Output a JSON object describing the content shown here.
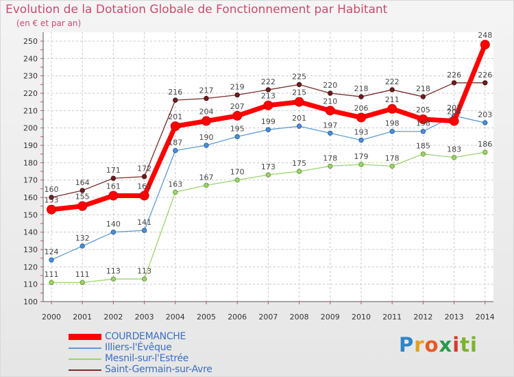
{
  "header": {
    "title": "Evolution de la Dotation Globale de Fonctionnement par Habitant",
    "subtitle": "(en € et par an)"
  },
  "logo": {
    "text": "Proxiti",
    "letters": [
      "P",
      "r",
      "o",
      "x",
      "i",
      "ti"
    ]
  },
  "chart_data": {
    "type": "line",
    "title": "Evolution de la Dotation Globale de Fonctionnement par Habitant",
    "subtitle": "(en € et par an)",
    "xlabel": "",
    "ylabel": "",
    "x": [
      "2000",
      "2001",
      "2002",
      "2003",
      "2004",
      "2005",
      "2006",
      "2007",
      "2008",
      "2009",
      "2010",
      "2011",
      "2012",
      "2013",
      "2014"
    ],
    "ylim": [
      100,
      250
    ],
    "yticks": [
      100,
      110,
      120,
      130,
      140,
      150,
      160,
      170,
      180,
      190,
      200,
      210,
      220,
      230,
      240,
      250
    ],
    "grid": true,
    "legend_position": "bottom-left",
    "series": [
      {
        "name": "COURDEMANCHE",
        "color": "#ff0000",
        "values": [
          153,
          155,
          161,
          161,
          201,
          204,
          207,
          213,
          215,
          210,
          206,
          211,
          205,
          204,
          248
        ]
      },
      {
        "name": "Illiers-l'Évêque",
        "color": "#5b9bd5",
        "values": [
          124,
          132,
          140,
          141,
          187,
          190,
          195,
          199,
          201,
          197,
          193,
          198,
          198,
          207,
          203
        ]
      },
      {
        "name": "Mesnil-sur-l'Estrée",
        "color": "#9bd46a",
        "values": [
          111,
          111,
          113,
          113,
          163,
          167,
          170,
          173,
          175,
          178,
          179,
          178,
          185,
          183,
          186
        ]
      },
      {
        "name": "Saint-Germain-sur-Avre",
        "color": "#7a2a2a",
        "values": [
          160,
          164,
          171,
          172,
          216,
          217,
          219,
          222,
          225,
          220,
          218,
          222,
          218,
          226,
          226
        ]
      }
    ],
    "data_labels": [
      [
        "153",
        "155",
        "161",
        "161",
        "201",
        "204",
        "207",
        "213",
        "215",
        "210",
        "206",
        "211",
        "205",
        "204",
        "248"
      ],
      [
        "124",
        "132",
        "140",
        "141",
        "187",
        "190",
        "195",
        "199",
        "201",
        "197",
        "193",
        "198",
        "198",
        "207",
        "203"
      ],
      [
        "111",
        "111",
        "113",
        "113",
        "163",
        "167",
        "170",
        "173",
        "175",
        "178",
        "179",
        "178",
        "185",
        "183",
        "186"
      ],
      [
        "160",
        "164",
        "171",
        "172",
        "216",
        "217",
        "219",
        "222",
        "225",
        "220",
        "218",
        "222",
        "218",
        "226",
        "226"
      ]
    ]
  }
}
